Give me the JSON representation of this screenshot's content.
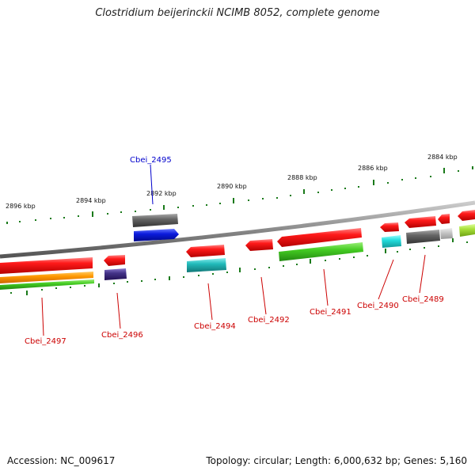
{
  "title": "Clostridium beijerinckii NCIMB 8052, complete genome",
  "footer": {
    "accession": "Accession: NC_009617",
    "stats": "Topology: circular; Length: 6,000,632 bp; Genes: 5,160"
  },
  "ruler_labels": [
    "2896 kbp",
    "2894 kbp",
    "2892 kbp",
    "2890 kbp",
    "2888 kbp",
    "2886 kbp",
    "2884 kbp"
  ],
  "genes": [
    {
      "label": "Cbei_2495",
      "color": "#0000cc"
    },
    {
      "label": "Cbei_2497",
      "color": "#cc0000"
    },
    {
      "label": "Cbei_2496",
      "color": "#cc0000"
    },
    {
      "label": "Cbei_2494",
      "color": "#cc0000"
    },
    {
      "label": "Cbei_2492",
      "color": "#cc0000"
    },
    {
      "label": "Cbei_2491",
      "color": "#cc0000"
    },
    {
      "label": "Cbei_2490",
      "color": "#cc0000"
    },
    {
      "label": "Cbei_2489",
      "color": "#cc0000"
    }
  ],
  "colors": {
    "backbone": "#8a8a8a",
    "tick": "#1a7a1a",
    "cds_red": "#ee1111",
    "gene_blue": "#0b1bdd",
    "gene_gray": "#666666",
    "rrna_green": "#44cc22",
    "orange": "#ff9900",
    "cyan": "#22cccc",
    "purple": "#443388"
  }
}
